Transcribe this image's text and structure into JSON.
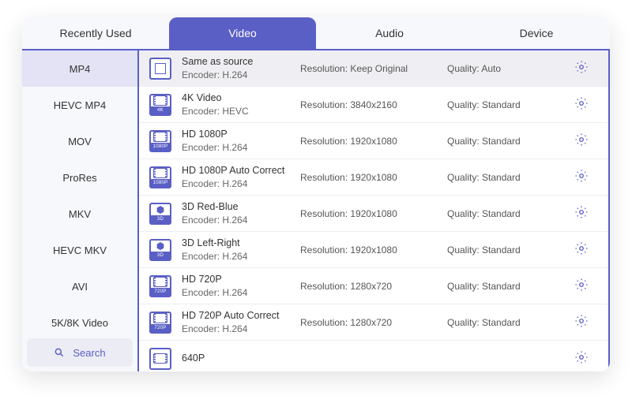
{
  "colors": {
    "accent": "#5a5fc5",
    "row_selected_bg": "#efeff3",
    "sidebar_selected_bg": "#e3e3f5",
    "window_bg": "#f7f8fc",
    "text": "#333333",
    "muted": "#666666"
  },
  "tabs": [
    {
      "label": "Recently Used",
      "active": false
    },
    {
      "label": "Video",
      "active": true
    },
    {
      "label": "Audio",
      "active": false
    },
    {
      "label": "Device",
      "active": false
    }
  ],
  "sidebar": {
    "items": [
      {
        "label": "MP4",
        "selected": true
      },
      {
        "label": "HEVC MP4",
        "selected": false
      },
      {
        "label": "MOV",
        "selected": false
      },
      {
        "label": "ProRes",
        "selected": false
      },
      {
        "label": "MKV",
        "selected": false
      },
      {
        "label": "HEVC MKV",
        "selected": false
      },
      {
        "label": "AVI",
        "selected": false
      },
      {
        "label": "5K/8K Video",
        "selected": false
      }
    ],
    "search_label": "Search"
  },
  "labels": {
    "encoder_prefix": "Encoder: ",
    "resolution_prefix": "Resolution: ",
    "quality_prefix": "Quality: "
  },
  "presets": [
    {
      "title": "Same as source",
      "encoder": "H.264",
      "resolution": "Keep Original",
      "quality": "Auto",
      "icon_badge": "",
      "icon_kind": "copy",
      "selected": true
    },
    {
      "title": "4K Video",
      "encoder": "HEVC",
      "resolution": "3840x2160",
      "quality": "Standard",
      "icon_badge": "4K",
      "icon_kind": "film",
      "selected": false
    },
    {
      "title": "HD 1080P",
      "encoder": "H.264",
      "resolution": "1920x1080",
      "quality": "Standard",
      "icon_badge": "1080P",
      "icon_kind": "film",
      "selected": false
    },
    {
      "title": "HD 1080P Auto Correct",
      "encoder": "H.264",
      "resolution": "1920x1080",
      "quality": "Standard",
      "icon_badge": "1080P",
      "icon_kind": "film",
      "selected": false
    },
    {
      "title": "3D Red-Blue",
      "encoder": "H.264",
      "resolution": "1920x1080",
      "quality": "Standard",
      "icon_badge": "3D",
      "icon_kind": "cube",
      "selected": false
    },
    {
      "title": "3D Left-Right",
      "encoder": "H.264",
      "resolution": "1920x1080",
      "quality": "Standard",
      "icon_badge": "3D",
      "icon_kind": "cube",
      "selected": false
    },
    {
      "title": "HD 720P",
      "encoder": "H.264",
      "resolution": "1280x720",
      "quality": "Standard",
      "icon_badge": "720P",
      "icon_kind": "film",
      "selected": false
    },
    {
      "title": "HD 720P Auto Correct",
      "encoder": "H.264",
      "resolution": "1280x720",
      "quality": "Standard",
      "icon_badge": "720P",
      "icon_kind": "film",
      "selected": false
    },
    {
      "title": "640P",
      "encoder": "",
      "resolution": "",
      "quality": "",
      "icon_badge": "",
      "icon_kind": "film",
      "selected": false
    }
  ]
}
